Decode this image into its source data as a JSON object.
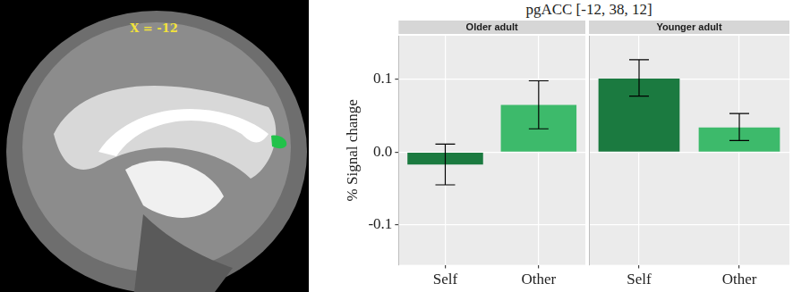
{
  "figure_title": "pgACC [-12, 38, 12]",
  "image": {
    "label": "X = -12"
  },
  "chart_data": [
    {
      "type": "bar",
      "title": "Older adult",
      "y_label": "% Signal change",
      "categories": [
        "Self",
        "Other"
      ],
      "values": [
        -0.017,
        0.065
      ],
      "error_low": [
        -0.045,
        0.032
      ],
      "error_high": [
        0.011,
        0.098
      ],
      "colors": [
        "#1b7a40",
        "#3dba6b"
      ],
      "ylim": [
        -0.155,
        0.16
      ],
      "yticks": [
        -0.1,
        {
          "value": 0,
          "label": "0.0"
        },
        0.1
      ],
      "grid": true
    },
    {
      "type": "bar",
      "title": "Younger adult",
      "categories": [
        "Self",
        "Other"
      ],
      "values": [
        0.101,
        0.034
      ],
      "error_low": [
        0.077,
        0.016
      ],
      "error_high": [
        0.127,
        0.053
      ],
      "colors": [
        "#1b7a40",
        "#3dba6b"
      ],
      "ylim": [
        -0.155,
        0.16
      ],
      "yticks": [
        -0.1,
        {
          "value": 0,
          "label": "0.0"
        },
        0.1
      ],
      "grid": true,
      "tick_labels": "x"
    }
  ]
}
